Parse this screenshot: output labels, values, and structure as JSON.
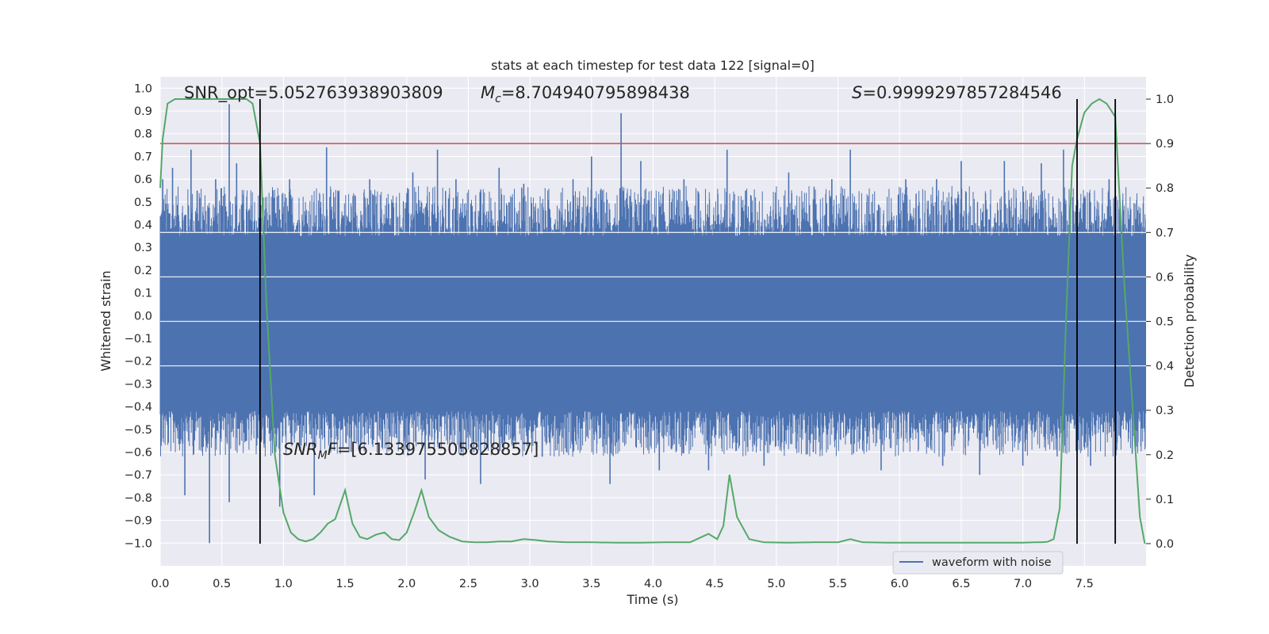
{
  "chart_data": {
    "type": "line",
    "title": "stats at each timestep for test data 122 [signal=0]",
    "xlabel": "Time (s)",
    "ylabel_left": "Whitened strain",
    "ylabel_right": "Detection probability",
    "xlim": [
      0,
      8
    ],
    "ylim_left": [
      -1.1,
      1.05
    ],
    "ylim_right": [
      -0.05,
      1.05
    ],
    "x_ticks": [
      "0.0",
      "0.5",
      "1.0",
      "1.5",
      "2.0",
      "2.5",
      "3.0",
      "3.5",
      "4.0",
      "4.5",
      "5.0",
      "5.5",
      "6.0",
      "6.5",
      "7.0",
      "7.5"
    ],
    "y_left_ticks": [
      "1.0",
      "0.9",
      "0.8",
      "0.7",
      "0.6",
      "0.5",
      "0.4",
      "0.3",
      "0.2",
      "0.1",
      "0.0",
      "-0.1",
      "-0.2",
      "-0.3",
      "-0.4",
      "-0.5",
      "-0.6",
      "-0.7",
      "-0.8",
      "-0.9",
      "-1.0"
    ],
    "y_right_ticks": [
      "1.0",
      "0.9",
      "0.8",
      "0.7",
      "0.6",
      "0.5",
      "0.4",
      "0.3",
      "0.2",
      "0.1",
      "0.0"
    ],
    "grid": true,
    "legend": {
      "position": "lower-right",
      "entries": [
        "waveform with noise"
      ]
    },
    "annotations": {
      "snr_opt": "SNR_opt=5.052763938903809",
      "mc_symbol": "M",
      "mc_subscript": "c",
      "mc_value": "=8.704940795898438",
      "s_symbol": "S",
      "s_value": "=0.9999297857284546",
      "snr_mf_symbol": "SNR",
      "snr_mf_subscript": "M",
      "snr_mf_rest": "F",
      "snr_mf_value": "=[6.133975505828857]"
    },
    "colors": {
      "waveform": "#4c72b0",
      "probability": "#55a868",
      "threshold": "#c44e52",
      "markers": "#000000",
      "background": "#eaeaf2"
    },
    "threshold": 0.9,
    "vertical_markers_x": [
      0.81,
      7.44,
      7.75
    ],
    "series": [
      {
        "name": "waveform with noise",
        "envelope_core": 0.35,
        "spikes": [
          [
            0.02,
            0.6
          ],
          [
            0.06,
            -0.48
          ],
          [
            0.1,
            0.65
          ],
          [
            0.2,
            -0.79
          ],
          [
            0.25,
            0.73
          ],
          [
            0.3,
            0.55
          ],
          [
            0.4,
            -1.0
          ],
          [
            0.45,
            0.6
          ],
          [
            0.56,
            0.93
          ],
          [
            0.56,
            -0.82
          ],
          [
            0.62,
            0.67
          ],
          [
            0.7,
            -0.55
          ],
          [
            0.85,
            -0.52
          ],
          [
            0.97,
            -0.84
          ],
          [
            1.05,
            0.6
          ],
          [
            1.25,
            -0.79
          ],
          [
            1.35,
            0.74
          ],
          [
            1.45,
            0.55
          ],
          [
            1.55,
            -0.6
          ],
          [
            1.7,
            0.6
          ],
          [
            1.8,
            -0.58
          ],
          [
            2.05,
            0.63
          ],
          [
            2.15,
            -0.72
          ],
          [
            2.25,
            0.73
          ],
          [
            2.4,
            0.6
          ],
          [
            2.6,
            -0.74
          ],
          [
            2.75,
            0.65
          ],
          [
            2.95,
            0.58
          ],
          [
            3.1,
            -0.62
          ],
          [
            3.35,
            0.6
          ],
          [
            3.5,
            0.7
          ],
          [
            3.65,
            -0.74
          ],
          [
            3.74,
            0.89
          ],
          [
            3.9,
            0.68
          ],
          [
            4.05,
            -0.68
          ],
          [
            4.25,
            0.6
          ],
          [
            4.45,
            -0.68
          ],
          [
            4.6,
            0.73
          ],
          [
            4.75,
            0.55
          ],
          [
            4.9,
            -0.66
          ],
          [
            5.1,
            0.63
          ],
          [
            5.3,
            -0.6
          ],
          [
            5.45,
            0.6
          ],
          [
            5.6,
            0.73
          ],
          [
            5.85,
            -0.68
          ],
          [
            6.05,
            0.6
          ],
          [
            6.3,
            0.6
          ],
          [
            6.35,
            -0.66
          ],
          [
            6.5,
            0.68
          ],
          [
            6.65,
            -0.7
          ],
          [
            6.85,
            0.68
          ],
          [
            7.0,
            -0.66
          ],
          [
            7.15,
            0.67
          ],
          [
            7.33,
            0.73
          ],
          [
            7.55,
            -0.66
          ],
          [
            7.7,
            0.6
          ],
          [
            7.9,
            -0.5
          ],
          [
            7.95,
            0.45
          ]
        ]
      },
      {
        "name": "",
        "axis": "right",
        "x": [
          0.0,
          0.02,
          0.06,
          0.12,
          0.2,
          0.3,
          0.4,
          0.5,
          0.6,
          0.7,
          0.75,
          0.81,
          0.86,
          0.93,
          1.0,
          1.06,
          1.12,
          1.18,
          1.24,
          1.3,
          1.36,
          1.42,
          1.5,
          1.56,
          1.62,
          1.68,
          1.75,
          1.82,
          1.88,
          1.94,
          2.0,
          2.06,
          2.12,
          2.18,
          2.26,
          2.35,
          2.45,
          2.55,
          2.65,
          2.75,
          2.85,
          2.95,
          3.05,
          3.15,
          3.3,
          3.5,
          3.7,
          3.9,
          4.1,
          4.3,
          4.45,
          4.52,
          4.57,
          4.62,
          4.68,
          4.78,
          4.9,
          5.1,
          5.3,
          5.5,
          5.6,
          5.7,
          5.9,
          6.2,
          6.6,
          7.0,
          7.1,
          7.15,
          7.2,
          7.25,
          7.3,
          7.35,
          7.4,
          7.44,
          7.5,
          7.56,
          7.62,
          7.68,
          7.75,
          7.82,
          7.88,
          7.95,
          7.99
        ],
        "y": [
          0.8,
          0.91,
          0.99,
          1.0,
          1.0,
          1.0,
          1.0,
          1.0,
          1.0,
          1.0,
          0.99,
          0.9,
          0.55,
          0.2,
          0.07,
          0.025,
          0.01,
          0.005,
          0.01,
          0.025,
          0.045,
          0.055,
          0.12,
          0.045,
          0.015,
          0.01,
          0.02,
          0.025,
          0.01,
          0.008,
          0.025,
          0.07,
          0.12,
          0.06,
          0.03,
          0.015,
          0.005,
          0.003,
          0.003,
          0.005,
          0.005,
          0.01,
          0.008,
          0.005,
          0.003,
          0.003,
          0.002,
          0.002,
          0.003,
          0.003,
          0.022,
          0.01,
          0.04,
          0.155,
          0.06,
          0.01,
          0.003,
          0.002,
          0.003,
          0.003,
          0.01,
          0.003,
          0.002,
          0.002,
          0.002,
          0.002,
          0.003,
          0.003,
          0.004,
          0.01,
          0.08,
          0.5,
          0.85,
          0.91,
          0.97,
          0.99,
          1.0,
          0.99,
          0.96,
          0.6,
          0.35,
          0.06,
          0.0
        ]
      }
    ]
  }
}
